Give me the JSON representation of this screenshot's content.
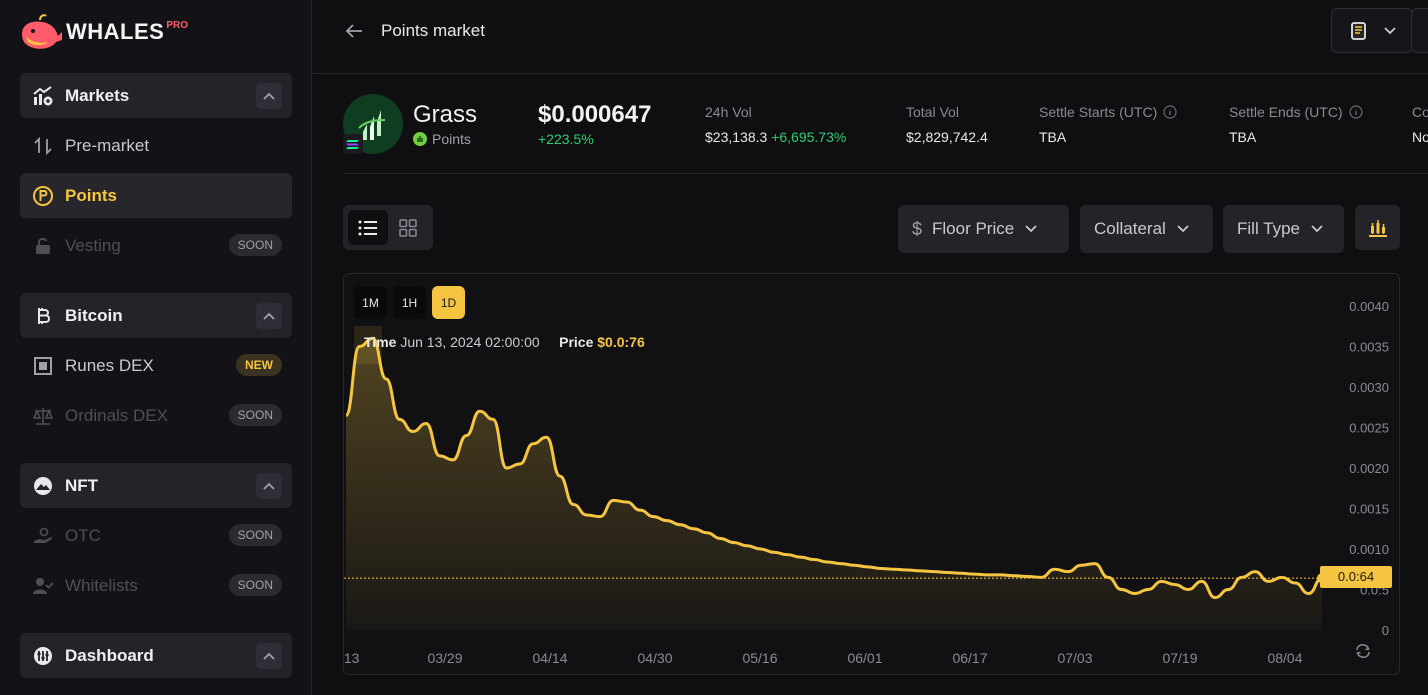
{
  "brand": {
    "name": "WHALES",
    "tag": "PRO"
  },
  "sidebar": {
    "sections": [
      {
        "title": "Markets",
        "items": [
          {
            "label": "Pre-market",
            "state": "normal"
          },
          {
            "label": "Points",
            "state": "active"
          },
          {
            "label": "Vesting",
            "state": "disabled",
            "badge": "SOON"
          }
        ]
      },
      {
        "title": "Bitcoin",
        "items": [
          {
            "label": "Runes DEX",
            "state": "normal",
            "badge": "NEW"
          },
          {
            "label": "Ordinals DEX",
            "state": "disabled",
            "badge": "SOON"
          }
        ]
      },
      {
        "title": "NFT",
        "items": [
          {
            "label": "OTC",
            "state": "disabled",
            "badge": "SOON"
          },
          {
            "label": "Whitelists",
            "state": "disabled",
            "badge": "SOON"
          }
        ]
      },
      {
        "title": "Dashboard",
        "items": []
      }
    ]
  },
  "header": {
    "title": "Points market"
  },
  "token": {
    "name": "Grass",
    "type": "Points",
    "price": "$0.000647",
    "change": "+223.5%",
    "stats": [
      {
        "label": "24h Vol",
        "value": "$23,138.3",
        "delta": "+6,695.73%"
      },
      {
        "label": "Total Vol",
        "value": "$2,829,742.4"
      },
      {
        "label": "Settle Starts (UTC)",
        "value": "TBA",
        "info": true
      },
      {
        "label": "Settle Ends (UTC)",
        "value": "TBA",
        "info": true
      },
      {
        "label": "Co",
        "value": "No"
      }
    ]
  },
  "filters": {
    "floor": "Floor Price",
    "collateral": "Collateral",
    "fill": "Fill Type"
  },
  "timeframes": [
    "1M",
    "1H",
    "1D"
  ],
  "active_timeframe": "1D",
  "tooltip": {
    "time_label": "Time",
    "time_value": "Jun 13, 2024 02:00:00",
    "price_label": "Price",
    "price_value": "$0.0:76"
  },
  "current_price_label": "0.0:64",
  "chart_data": {
    "type": "area",
    "x_ticks": [
      "/13",
      "03/29",
      "04/14",
      "04/30",
      "05/16",
      "06/01",
      "06/17",
      "07/03",
      "07/19",
      "08/04"
    ],
    "y_ticks": [
      "0.0040",
      "0.0035",
      "0.0030",
      "0.0025",
      "0.0020",
      "0.0015",
      "0.0010",
      "0.0:5",
      "0"
    ],
    "ylim": [
      0,
      0.004
    ],
    "current_price": 0.00064,
    "series": [
      {
        "values": [
          0.00265,
          0.0035,
          0.0036,
          0.0031,
          0.0026,
          0.00245,
          0.00255,
          0.00215,
          0.0021,
          0.0024,
          0.0027,
          0.0026,
          0.002,
          0.00205,
          0.0023,
          0.00238,
          0.0019,
          0.00155,
          0.00142,
          0.0014,
          0.0016,
          0.00158,
          0.00148,
          0.0014,
          0.00135,
          0.0013,
          0.00125,
          0.0012,
          0.00113,
          0.00108,
          0.00104,
          0.001,
          0.00096,
          0.00093,
          0.0009,
          0.00087,
          0.00084,
          0.00082,
          0.0008,
          0.00078,
          0.00076,
          0.00075,
          0.00074,
          0.00073,
          0.00072,
          0.00071,
          0.0007,
          0.00069,
          0.00068,
          0.00068,
          0.00067,
          0.00066,
          0.00065,
          0.00075,
          0.00072,
          0.0008,
          0.00082,
          0.00065,
          0.0005,
          0.00045,
          0.0005,
          0.0006,
          0.00056,
          0.0005,
          0.0006,
          0.0004,
          0.0005,
          0.00065,
          0.00072,
          0.0006,
          0.00065,
          0.00058,
          0.00045,
          0.00064
        ]
      }
    ]
  }
}
